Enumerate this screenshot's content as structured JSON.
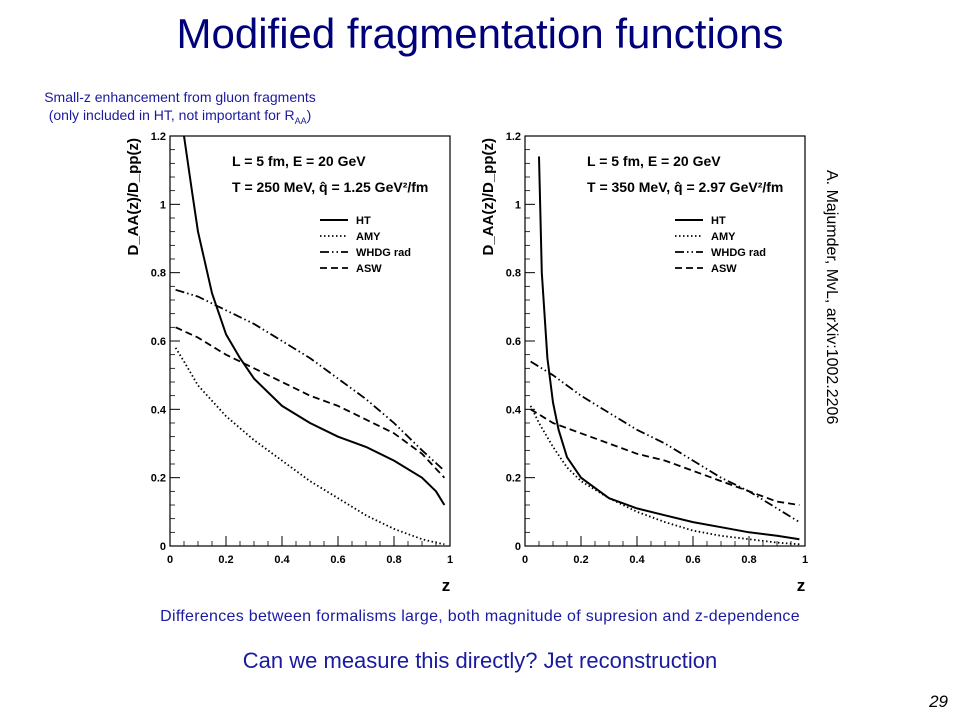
{
  "slide": {
    "title": "Modified fragmentation functions",
    "note_line1": "Small-z enhancement from gluon fragments",
    "note_line2_prefix": "(only included in HT, not important for R",
    "note_line2_sub": "AA",
    "note_line2_suffix": ")",
    "citation": "A. Majumder, MvL, arXiv:1002.2206",
    "differences": "Differences between formalisms large, both magnitude of supresion and z-dependence",
    "question": "Can we measure this directly? Jet reconstruction",
    "slide_number": "29"
  },
  "chart_data": [
    {
      "type": "line",
      "xlabel": "z",
      "ylabel": "D_AA(z)/D_pp(z)",
      "xlim": [
        0,
        1
      ],
      "ylim": [
        0,
        1.2
      ],
      "xticks": [
        "0",
        "0.2",
        "0.4",
        "0.6",
        "0.8",
        "1"
      ],
      "yticks": [
        "0",
        "0.2",
        "0.4",
        "0.6",
        "0.8",
        "1",
        "1.2"
      ],
      "annotation_line1": "L = 5 fm, E = 20 GeV",
      "annotation_line2": "T = 250 MeV, q̂ = 1.25 GeV²/fm",
      "legend_position": "right",
      "series": [
        {
          "name": "HT",
          "style": "solid",
          "x": [
            0.05,
            0.08,
            0.1,
            0.15,
            0.2,
            0.25,
            0.3,
            0.4,
            0.5,
            0.6,
            0.7,
            0.8,
            0.9,
            0.95,
            0.98
          ],
          "y": [
            1.2,
            1.03,
            0.92,
            0.74,
            0.62,
            0.55,
            0.49,
            0.41,
            0.36,
            0.32,
            0.29,
            0.25,
            0.2,
            0.16,
            0.12
          ]
        },
        {
          "name": "AMY",
          "style": "dotted",
          "x": [
            0.02,
            0.05,
            0.1,
            0.2,
            0.3,
            0.4,
            0.5,
            0.6,
            0.7,
            0.8,
            0.9,
            0.95,
            0.98
          ],
          "y": [
            0.58,
            0.54,
            0.47,
            0.38,
            0.31,
            0.25,
            0.19,
            0.14,
            0.09,
            0.05,
            0.02,
            0.01,
            0.005
          ]
        },
        {
          "name": "WHDG rad",
          "style": "dashdotdot",
          "x": [
            0.02,
            0.1,
            0.2,
            0.3,
            0.4,
            0.5,
            0.6,
            0.7,
            0.8,
            0.9,
            0.98
          ],
          "y": [
            0.75,
            0.73,
            0.69,
            0.65,
            0.6,
            0.55,
            0.49,
            0.43,
            0.36,
            0.28,
            0.22
          ]
        },
        {
          "name": "ASW",
          "style": "dashed",
          "x": [
            0.02,
            0.1,
            0.2,
            0.3,
            0.4,
            0.5,
            0.6,
            0.7,
            0.8,
            0.9,
            0.98
          ],
          "y": [
            0.64,
            0.61,
            0.56,
            0.52,
            0.48,
            0.44,
            0.41,
            0.37,
            0.33,
            0.27,
            0.2
          ]
        }
      ]
    },
    {
      "type": "line",
      "xlabel": "z",
      "ylabel": "D_AA(z)/D_pp(z)",
      "xlim": [
        0,
        1
      ],
      "ylim": [
        0,
        1.2
      ],
      "xticks": [
        "0",
        "0.2",
        "0.4",
        "0.6",
        "0.8",
        "1"
      ],
      "yticks": [
        "0",
        "0.2",
        "0.4",
        "0.6",
        "0.8",
        "1",
        "1.2"
      ],
      "annotation_line1": "L = 5 fm, E = 20 GeV",
      "annotation_line2": "T = 350 MeV, q̂ = 2.97 GeV²/fm",
      "legend_position": "right",
      "series": [
        {
          "name": "HT",
          "style": "solid",
          "x": [
            0.05,
            0.06,
            0.08,
            0.1,
            0.12,
            0.15,
            0.2,
            0.3,
            0.4,
            0.5,
            0.6,
            0.7,
            0.8,
            0.9,
            0.98
          ],
          "y": [
            1.14,
            0.8,
            0.55,
            0.42,
            0.34,
            0.26,
            0.2,
            0.14,
            0.11,
            0.09,
            0.07,
            0.055,
            0.04,
            0.03,
            0.02
          ]
        },
        {
          "name": "AMY",
          "style": "dotted",
          "x": [
            0.02,
            0.05,
            0.1,
            0.15,
            0.2,
            0.3,
            0.4,
            0.5,
            0.6,
            0.7,
            0.8,
            0.9,
            0.98
          ],
          "y": [
            0.41,
            0.36,
            0.29,
            0.23,
            0.19,
            0.14,
            0.1,
            0.07,
            0.045,
            0.03,
            0.02,
            0.01,
            0.005
          ]
        },
        {
          "name": "WHDG rad",
          "style": "dashdotdot",
          "x": [
            0.02,
            0.1,
            0.2,
            0.3,
            0.4,
            0.5,
            0.6,
            0.7,
            0.8,
            0.9,
            0.98
          ],
          "y": [
            0.54,
            0.5,
            0.44,
            0.39,
            0.34,
            0.3,
            0.25,
            0.2,
            0.16,
            0.11,
            0.07
          ]
        },
        {
          "name": "ASW",
          "style": "dashed",
          "x": [
            0.02,
            0.1,
            0.2,
            0.3,
            0.4,
            0.5,
            0.6,
            0.7,
            0.8,
            0.9,
            0.98
          ],
          "y": [
            0.4,
            0.36,
            0.33,
            0.3,
            0.27,
            0.25,
            0.22,
            0.19,
            0.16,
            0.13,
            0.12
          ]
        }
      ]
    }
  ]
}
